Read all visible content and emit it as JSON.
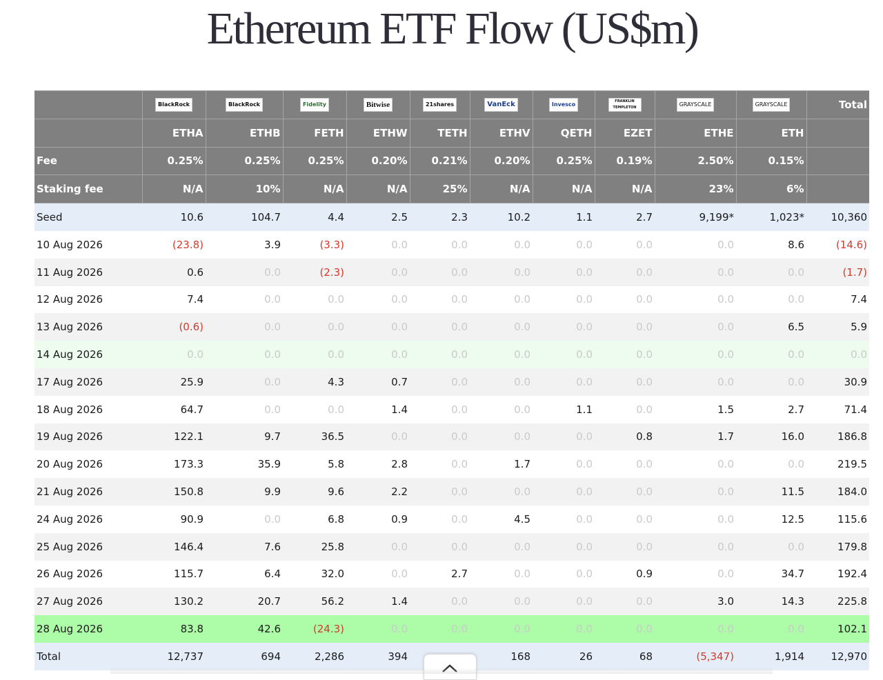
{
  "title": "Ethereum ETF Flow (US$m)",
  "header": {
    "logos": [
      "BlackRock",
      "BlackRock",
      "Fidelity",
      "Bitwise",
      "21shares",
      "VanEck",
      "Invesco",
      "FRANKLIN TEMPLETON",
      "GRAYSCALE",
      "GRAYSCALE"
    ],
    "total_label": "Total",
    "tickers": [
      "ETHA",
      "ETHB",
      "FETH",
      "ETHW",
      "TETH",
      "ETHV",
      "QETH",
      "EZET",
      "ETHE",
      "ETH"
    ],
    "fee_label": "Fee",
    "fees": [
      "0.25%",
      "0.25%",
      "0.25%",
      "0.20%",
      "0.21%",
      "0.20%",
      "0.25%",
      "0.19%",
      "2.50%",
      "0.15%"
    ],
    "staking_label": "Staking fee",
    "staking_fees": [
      "N/A",
      "10%",
      "N/A",
      "N/A",
      "25%",
      "N/A",
      "N/A",
      "N/A",
      "23%",
      "6%"
    ]
  },
  "rows": [
    {
      "label": "Seed",
      "cells": [
        "10.6",
        "104.7",
        "4.4",
        "2.5",
        "2.3",
        "10.2",
        "1.1",
        "2.7",
        "9,199*",
        "1,023*",
        "10,360"
      ]
    },
    {
      "label": "10 Aug 2026",
      "cells": [
        "(23.8)",
        "3.9",
        "(3.3)",
        "0.0",
        "0.0",
        "0.0",
        "0.0",
        "0.0",
        "0.0",
        "8.6",
        "(14.6)"
      ]
    },
    {
      "label": "11 Aug 2026",
      "cells": [
        "0.6",
        "0.0",
        "(2.3)",
        "0.0",
        "0.0",
        "0.0",
        "0.0",
        "0.0",
        "0.0",
        "0.0",
        "(1.7)"
      ]
    },
    {
      "label": "12 Aug 2026",
      "cells": [
        "7.4",
        "0.0",
        "0.0",
        "0.0",
        "0.0",
        "0.0",
        "0.0",
        "0.0",
        "0.0",
        "0.0",
        "7.4"
      ]
    },
    {
      "label": "13 Aug 2026",
      "cells": [
        "(0.6)",
        "0.0",
        "0.0",
        "0.0",
        "0.0",
        "0.0",
        "0.0",
        "0.0",
        "0.0",
        "6.5",
        "5.9"
      ]
    },
    {
      "label": "14 Aug 2026",
      "cells": [
        "0.0",
        "0.0",
        "0.0",
        "0.0",
        "0.0",
        "0.0",
        "0.0",
        "0.0",
        "0.0",
        "0.0",
        "0.0"
      ]
    },
    {
      "label": "17 Aug 2026",
      "cells": [
        "25.9",
        "0.0",
        "4.3",
        "0.7",
        "0.0",
        "0.0",
        "0.0",
        "0.0",
        "0.0",
        "0.0",
        "30.9"
      ]
    },
    {
      "label": "18 Aug 2026",
      "cells": [
        "64.7",
        "0.0",
        "0.0",
        "1.4",
        "0.0",
        "0.0",
        "1.1",
        "0.0",
        "1.5",
        "2.7",
        "71.4"
      ]
    },
    {
      "label": "19 Aug 2026",
      "cells": [
        "122.1",
        "9.7",
        "36.5",
        "0.0",
        "0.0",
        "0.0",
        "0.0",
        "0.8",
        "1.7",
        "16.0",
        "186.8"
      ]
    },
    {
      "label": "20 Aug 2026",
      "cells": [
        "173.3",
        "35.9",
        "5.8",
        "2.8",
        "0.0",
        "1.7",
        "0.0",
        "0.0",
        "0.0",
        "0.0",
        "219.5"
      ]
    },
    {
      "label": "21 Aug 2026",
      "cells": [
        "150.8",
        "9.9",
        "9.6",
        "2.2",
        "0.0",
        "0.0",
        "0.0",
        "0.0",
        "0.0",
        "11.5",
        "184.0"
      ]
    },
    {
      "label": "24 Aug 2026",
      "cells": [
        "90.9",
        "0.0",
        "6.8",
        "0.9",
        "0.0",
        "4.5",
        "0.0",
        "0.0",
        "0.0",
        "12.5",
        "115.6"
      ]
    },
    {
      "label": "25 Aug 2026",
      "cells": [
        "146.4",
        "7.6",
        "25.8",
        "0.0",
        "0.0",
        "0.0",
        "0.0",
        "0.0",
        "0.0",
        "0.0",
        "179.8"
      ]
    },
    {
      "label": "26 Aug 2026",
      "cells": [
        "115.7",
        "6.4",
        "32.0",
        "0.0",
        "2.7",
        "0.0",
        "0.0",
        "0.9",
        "0.0",
        "34.7",
        "192.4"
      ]
    },
    {
      "label": "27 Aug 2026",
      "cells": [
        "130.2",
        "20.7",
        "56.2",
        "1.4",
        "0.0",
        "0.0",
        "0.0",
        "0.0",
        "3.0",
        "14.3",
        "225.8"
      ]
    },
    {
      "label": "28 Aug 2026",
      "cells": [
        "83.8",
        "42.6",
        "(24.3)",
        "0.0",
        "0.0",
        "0.0",
        "0.0",
        "0.0",
        "0.0",
        "0.0",
        "102.1"
      ]
    },
    {
      "label": "Total",
      "cells": [
        "12,737",
        "694",
        "2,286",
        "394",
        "",
        "168",
        "26",
        "68",
        "(5,347)",
        "1,914",
        "12,970"
      ]
    }
  ],
  "colors": {
    "header_bg": "#808080",
    "negative": "#d43a2a",
    "zero": "#cacaca",
    "seed_total_bg": "#e5edf9",
    "holiday_bg": "#edfcee",
    "latest_bg": "#acfca8"
  },
  "icons": {
    "scroll_top": "chevron-up-icon"
  }
}
